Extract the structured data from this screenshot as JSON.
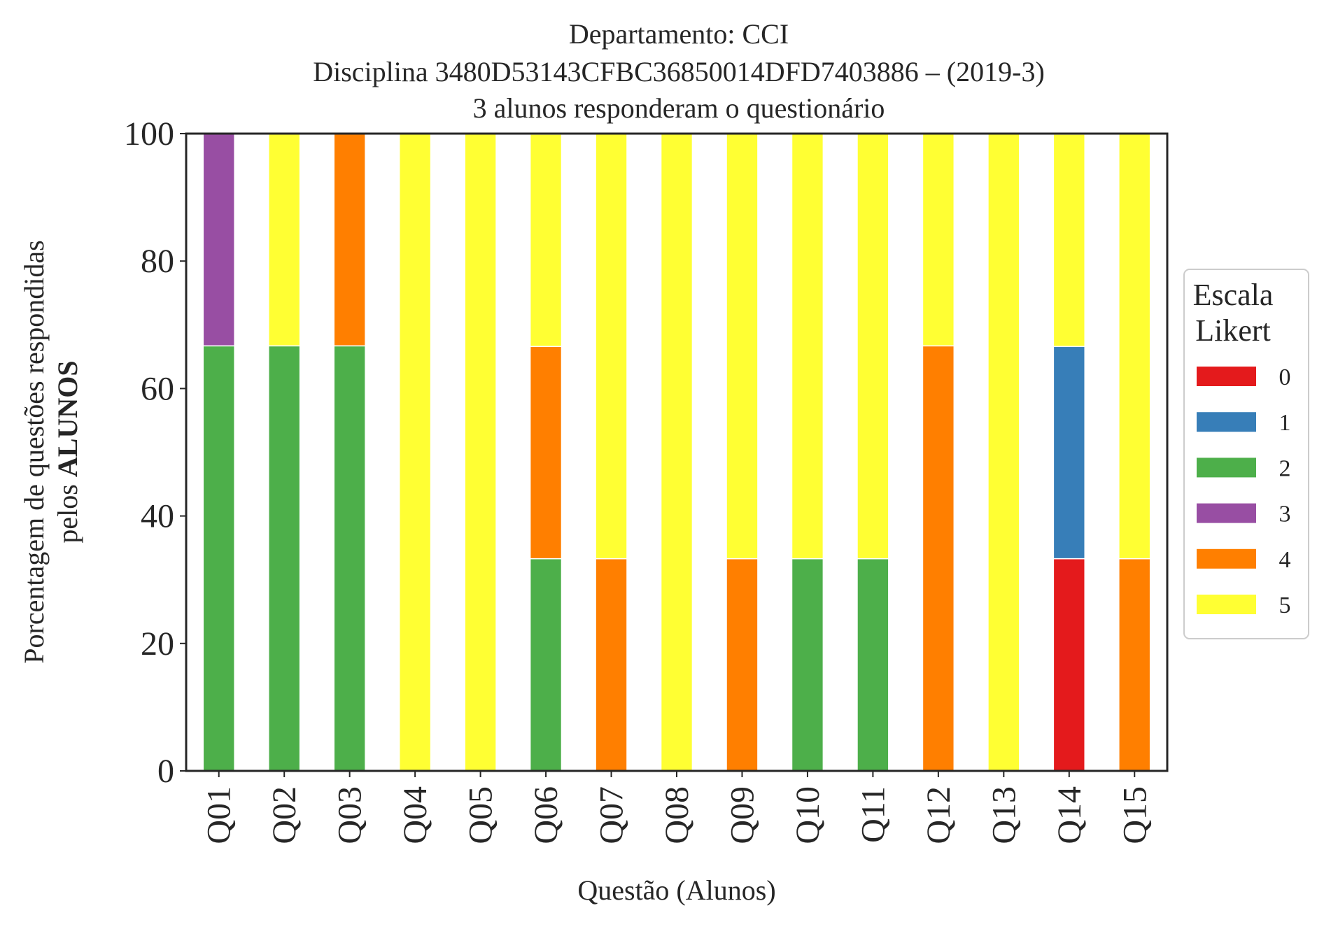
{
  "chart_data": {
    "type": "bar",
    "stacked": true,
    "title_lines": [
      "Departamento: CCI",
      "Disciplina 3480D53143CFBC36850014DFD7403886 – (2019-3)",
      "3 alunos responderam o questionário"
    ],
    "xlabel": "Questão (Alunos)",
    "ylabel_line1": "Porcentagem de questões respondidas",
    "ylabel_line2_prefix": "pelos ",
    "ylabel_line2_bold": "ALUNOS",
    "ylim": [
      0,
      100
    ],
    "yticks": [
      "0",
      "20",
      "40",
      "60",
      "80",
      "100"
    ],
    "grid": false,
    "legend_placement": "right",
    "legend_title_lines": [
      "Escala",
      "Likert"
    ],
    "categories": [
      "Q01",
      "Q02",
      "Q03",
      "Q04",
      "Q05",
      "Q06",
      "Q07",
      "Q08",
      "Q09",
      "Q10",
      "Q11",
      "Q12",
      "Q13",
      "Q14",
      "Q15"
    ],
    "series": [
      {
        "name": "0",
        "color": "#e41a1c",
        "values": [
          0,
          0,
          0,
          0,
          0,
          0,
          0,
          0,
          0,
          0,
          0,
          0,
          0,
          33.3,
          0
        ]
      },
      {
        "name": "1",
        "color": "#377eb8",
        "values": [
          0,
          0,
          0,
          0,
          0,
          0,
          0,
          0,
          0,
          0,
          0,
          0,
          0,
          33.3,
          0
        ]
      },
      {
        "name": "2",
        "color": "#4daf4a",
        "values": [
          66.7,
          66.7,
          66.7,
          0,
          0,
          33.3,
          0,
          0,
          0,
          33.3,
          33.3,
          0,
          0,
          0,
          0
        ]
      },
      {
        "name": "3",
        "color": "#984ea3",
        "values": [
          33.3,
          0,
          0,
          0,
          0,
          0,
          0,
          0,
          0,
          0,
          0,
          0,
          0,
          0,
          0
        ]
      },
      {
        "name": "4",
        "color": "#ff7f00",
        "values": [
          0,
          0,
          33.3,
          0,
          0,
          33.3,
          33.3,
          0,
          33.3,
          0,
          0,
          66.7,
          0,
          0,
          33.3
        ]
      },
      {
        "name": "5",
        "color": "#ffff33",
        "values": [
          0,
          33.3,
          0,
          100,
          100,
          33.3,
          66.7,
          100,
          66.7,
          66.7,
          66.7,
          33.3,
          100,
          33.3,
          66.7
        ]
      }
    ]
  }
}
